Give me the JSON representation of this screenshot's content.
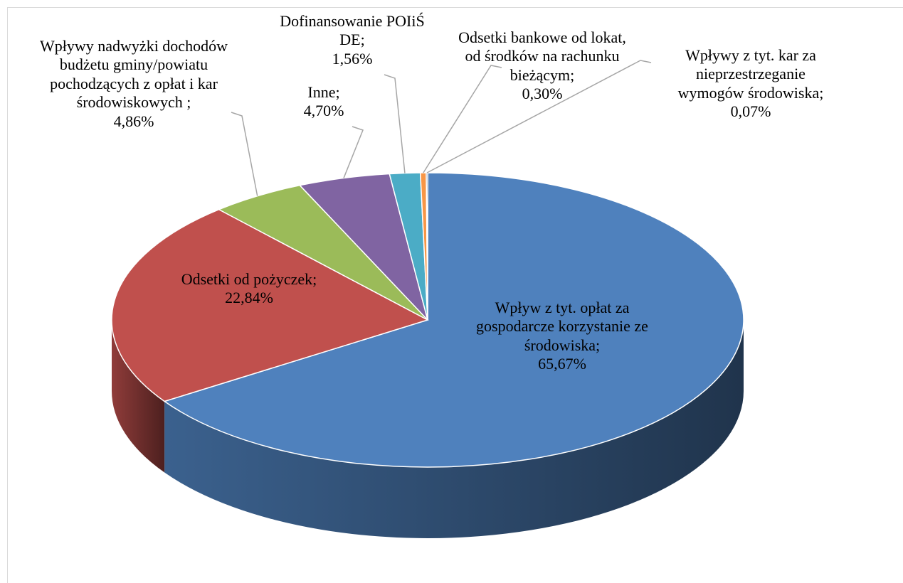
{
  "chart_data": {
    "type": "pie",
    "categories": [
      "Wpływ z tyt. opłat za gospodarcze korzystanie ze środowiska;",
      "Odsetki od pożyczek;",
      "Wpływy nadwyżki dochodów budżetu gminy/powiatu pochodzących z opłat i kar środowiskowych ;",
      "Inne;",
      "Dofinansowanie POIiŚ DE;",
      "Odsetki bankowe od lokat, od środków na rachunku bieżącym;",
      "Wpływy z tyt. kar za nieprzestrzeganie wymogów środowiska;"
    ],
    "values": [
      65.67,
      22.84,
      4.86,
      4.7,
      1.56,
      0.3,
      0.07
    ],
    "value_labels": [
      "65,67%",
      "22,84%",
      "4,86%",
      "4,70%",
      "1,56%",
      "0,30%",
      "0,07%"
    ],
    "colors": [
      "#4f81bd",
      "#c0504d",
      "#9bbb59",
      "#8064a2",
      "#4bacc6",
      "#f79646",
      "#2c4d75"
    ]
  }
}
